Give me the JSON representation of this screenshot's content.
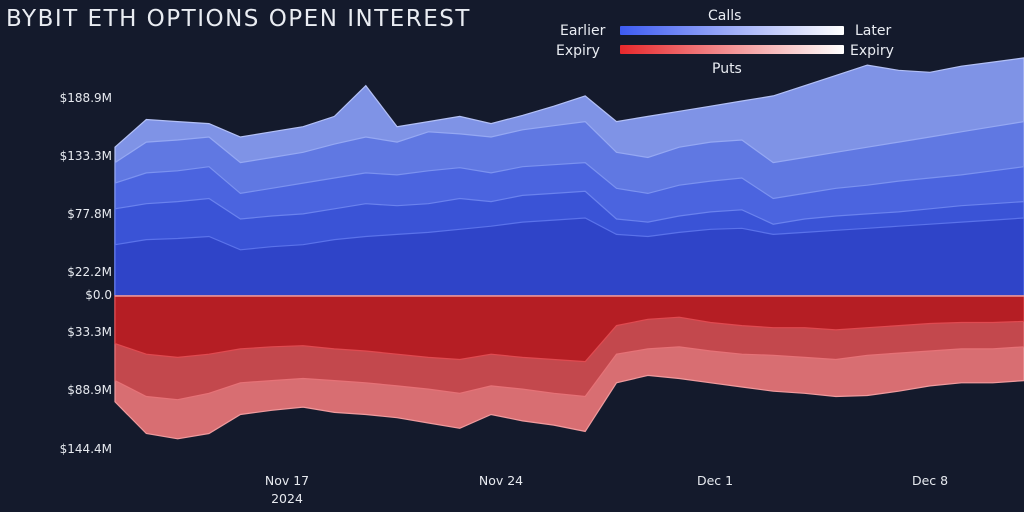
{
  "title": "BYBIT ETH OPTIONS OPEN INTEREST",
  "legend": {
    "calls_label": "Calls",
    "puts_label": "Puts",
    "earlier_label": "Earlier",
    "later_label": "Later",
    "expiry_left_label": "Expiry",
    "expiry_right_label": "Expiry",
    "calls_gradient": [
      "#3d5bf2",
      "#ffffff"
    ],
    "puts_gradient": [
      "#e8282c",
      "#ffffff"
    ]
  },
  "chart_data": {
    "type": "area",
    "title": "BYBIT ETH OPTIONS OPEN INTEREST",
    "xlabel": "",
    "ylabel": "",
    "x_range": [
      "2024-11-11",
      "2024-12-10"
    ],
    "y_axis_top_calls": [
      0,
      230
    ],
    "y_axis_bottom_puts": [
      0,
      155
    ],
    "y_ticks_calls": [
      "$22.2M",
      "$77.8M",
      "$133.3M",
      "$188.9M"
    ],
    "y_ticks_zero": "$0.0",
    "y_ticks_puts": [
      "$33.3M",
      "$88.9M",
      "$144.4M"
    ],
    "x_ticks": [
      {
        "date": "2024-11-17",
        "label": "Nov 17",
        "sublabel": "2024"
      },
      {
        "date": "2024-11-24",
        "label": "Nov 24",
        "sublabel": ""
      },
      {
        "date": "2024-12-01",
        "label": "Dec 1",
        "sublabel": ""
      },
      {
        "date": "2024-12-08",
        "label": "Dec 8",
        "sublabel": ""
      }
    ],
    "dates": [
      "2024-11-11",
      "2024-11-12",
      "2024-11-13",
      "2024-11-14",
      "2024-11-15",
      "2024-11-16",
      "2024-11-17",
      "2024-11-18",
      "2024-11-19",
      "2024-11-20",
      "2024-11-21",
      "2024-11-22",
      "2024-11-23",
      "2024-11-24",
      "2024-11-25",
      "2024-11-26",
      "2024-11-27",
      "2024-11-28",
      "2024-11-29",
      "2024-11-30",
      "2024-12-01",
      "2024-12-02",
      "2024-12-03",
      "2024-12-04",
      "2024-12-05",
      "2024-12-06",
      "2024-12-07",
      "2024-12-08",
      "2024-12-09",
      "2024-12-10"
    ],
    "calls_series": [
      {
        "values": [
          50,
          55,
          56,
          58,
          45,
          48,
          50,
          55,
          58,
          60,
          62,
          65,
          68,
          72,
          74,
          76,
          60,
          58,
          62,
          65,
          66,
          60,
          62,
          64,
          66,
          68,
          70,
          72,
          74,
          76
        ]
      },
      {
        "values": [
          85,
          90,
          92,
          95,
          75,
          78,
          80,
          85,
          90,
          88,
          90,
          95,
          92,
          98,
          100,
          102,
          75,
          72,
          78,
          82,
          84,
          70,
          75,
          78,
          80,
          82,
          85,
          88,
          90,
          92
        ]
      },
      {
        "values": [
          110,
          120,
          122,
          126,
          100,
          105,
          110,
          115,
          120,
          118,
          122,
          125,
          120,
          126,
          128,
          130,
          105,
          100,
          108,
          112,
          115,
          95,
          100,
          105,
          108,
          112,
          115,
          118,
          122,
          126
        ]
      },
      {
        "values": [
          130,
          150,
          152,
          155,
          130,
          135,
          140,
          148,
          155,
          150,
          160,
          158,
          155,
          162,
          166,
          170,
          140,
          135,
          145,
          150,
          152,
          130,
          135,
          140,
          145,
          150,
          155,
          160,
          165,
          170
        ]
      },
      {
        "values": [
          145,
          172,
          170,
          168,
          155,
          160,
          165,
          175,
          205,
          165,
          170,
          175,
          168,
          176,
          185,
          195,
          170,
          175,
          180,
          185,
          190,
          195,
          205,
          215,
          225,
          220,
          218,
          224,
          228,
          232
        ]
      }
    ],
    "puts_series": [
      {
        "values": [
          45,
          55,
          58,
          55,
          50,
          48,
          47,
          50,
          52,
          55,
          58,
          60,
          55,
          58,
          60,
          62,
          28,
          22,
          20,
          25,
          28,
          30,
          30,
          32,
          30,
          28,
          26,
          25,
          25,
          24
        ]
      },
      {
        "values": [
          80,
          95,
          98,
          92,
          82,
          80,
          78,
          80,
          82,
          85,
          88,
          92,
          85,
          88,
          92,
          95,
          55,
          50,
          48,
          52,
          55,
          56,
          58,
          60,
          56,
          54,
          52,
          50,
          50,
          48
        ]
      },
      {
        "values": [
          100,
          130,
          135,
          130,
          112,
          108,
          105,
          110,
          112,
          115,
          120,
          125,
          112,
          118,
          122,
          128,
          82,
          75,
          78,
          82,
          86,
          90,
          92,
          95,
          94,
          90,
          85,
          82,
          82,
          80
        ]
      }
    ]
  }
}
